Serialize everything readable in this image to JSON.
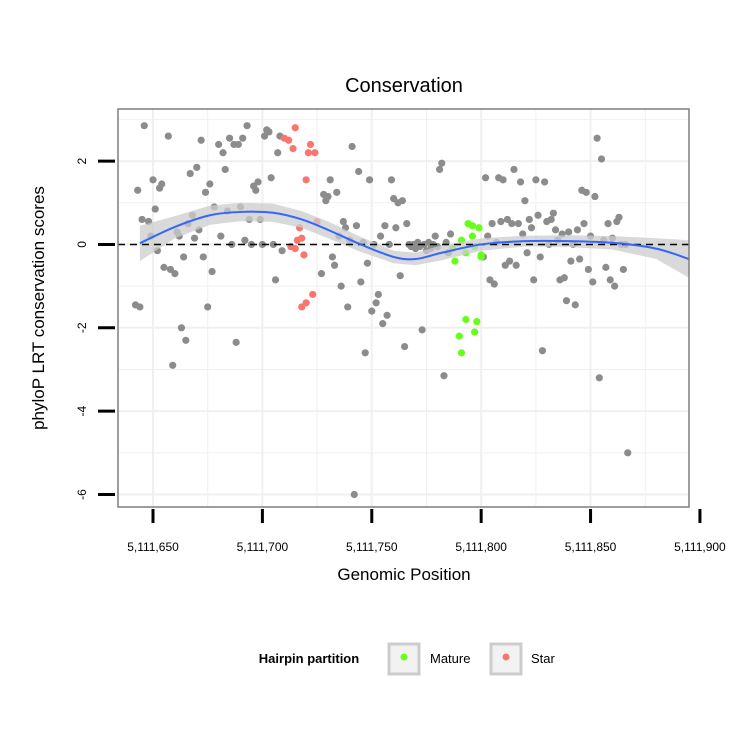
{
  "chart_data": {
    "type": "scatter",
    "title": "Conservation",
    "xlabel": "Genomic Position",
    "ylabel": "phyloP LRT conservation scores",
    "xlim": [
      5111634,
      5111895
    ],
    "ylim": [
      -6.3,
      3.25
    ],
    "x_ticks": [
      5111650,
      5111700,
      5111750,
      5111800,
      5111850,
      5111900
    ],
    "x_tick_labels": [
      "5,111,650",
      "5,111,700",
      "5,111,750",
      "5,111,800",
      "5,111,850",
      "5,111,900"
    ],
    "y_ticks": [
      -6,
      -4,
      -2,
      0,
      2
    ],
    "y_tick_labels": [
      "-6",
      "-4",
      "-2",
      "0",
      "2"
    ],
    "grid": true,
    "reference_line": {
      "y": 0,
      "style": "dashed"
    },
    "legend": {
      "title": "Hairpin partition",
      "placement": "bottom",
      "entries": [
        {
          "name": "Mature",
          "color": "#66ff1a"
        },
        {
          "name": "Star",
          "color": "#f8766d"
        }
      ]
    },
    "colors": {
      "other": "#8c8c8c",
      "Mature": "#66ff1a",
      "Star": "#f8766d",
      "smooth": "#3366ff",
      "ribbon": "#cccccc",
      "panel_border": "#7f7f7f",
      "grid": "#f0f0f0"
    },
    "smooth": {
      "x": [
        5111644,
        5111660,
        5111676,
        5111690,
        5111705,
        5111718,
        5111730,
        5111745,
        5111760,
        5111770,
        5111782,
        5111800,
        5111820,
        5111840,
        5111860,
        5111880,
        5111895
      ],
      "y": [
        0.03,
        0.42,
        0.7,
        0.78,
        0.76,
        0.6,
        0.35,
        0.0,
        -0.3,
        -0.35,
        -0.2,
        0.0,
        0.08,
        0.08,
        0.04,
        -0.1,
        -0.35
      ],
      "lower": [
        -0.4,
        0.15,
        0.47,
        0.56,
        0.54,
        0.4,
        0.15,
        -0.18,
        -0.45,
        -0.5,
        -0.38,
        -0.15,
        -0.05,
        -0.06,
        -0.12,
        -0.35,
        -0.8
      ],
      "upper": [
        0.45,
        0.68,
        0.93,
        1.0,
        0.98,
        0.8,
        0.55,
        0.18,
        -0.15,
        -0.2,
        -0.02,
        0.15,
        0.21,
        0.22,
        0.2,
        0.15,
        0.1
      ]
    },
    "series": [
      {
        "name": "Mature",
        "points": [
          [
            5111788,
            -0.4
          ],
          [
            5111787,
            -0.1
          ],
          [
            5111790,
            -2.2
          ],
          [
            5111791,
            -2.6
          ],
          [
            5111791,
            0.1
          ],
          [
            5111793,
            -0.2
          ],
          [
            5111793,
            -1.8
          ],
          [
            5111794,
            0.5
          ],
          [
            5111796,
            0.45
          ],
          [
            5111796,
            0.2
          ],
          [
            5111797,
            -2.1
          ],
          [
            5111797,
            -0.05
          ],
          [
            5111798,
            -1.85
          ],
          [
            5111799,
            0.4
          ],
          [
            5111800,
            -0.3
          ],
          [
            5111800,
            -0.25
          ]
        ]
      },
      {
        "name": "Star",
        "points": [
          [
            5111710,
            2.55
          ],
          [
            5111712,
            2.5
          ],
          [
            5111713,
            -0.05
          ],
          [
            5111714,
            2.3
          ],
          [
            5111715,
            -0.1
          ],
          [
            5111715,
            2.8
          ],
          [
            5111716,
            0.1
          ],
          [
            5111717,
            0.4
          ],
          [
            5111718,
            0.15
          ],
          [
            5111718,
            -1.5
          ],
          [
            5111719,
            -0.25
          ],
          [
            5111720,
            1.55
          ],
          [
            5111720,
            -1.4
          ],
          [
            5111721,
            2.2
          ],
          [
            5111722,
            2.4
          ],
          [
            5111723,
            -1.2
          ],
          [
            5111724,
            2.2
          ],
          [
            5111725,
            0.55
          ]
        ]
      }
    ],
    "other_points": [
      [
        5111642,
        -1.45
      ],
      [
        5111643,
        1.3
      ],
      [
        5111644,
        -1.5
      ],
      [
        5111645,
        0.6
      ],
      [
        5111646,
        2.85
      ],
      [
        5111648,
        0.55
      ],
      [
        5111649,
        0.2
      ],
      [
        5111650,
        1.55
      ],
      [
        5111651,
        0.85
      ],
      [
        5111652,
        -0.15
      ],
      [
        5111653,
        1.35
      ],
      [
        5111654,
        1.45
      ],
      [
        5111655,
        -0.55
      ],
      [
        5111657,
        2.6
      ],
      [
        5111658,
        -0.6
      ],
      [
        5111659,
        -2.9
      ],
      [
        5111660,
        -0.7
      ],
      [
        5111661,
        0.3
      ],
      [
        5111662,
        0.2
      ],
      [
        5111663,
        -2.0
      ],
      [
        5111664,
        -0.3
      ],
      [
        5111665,
        -2.3
      ],
      [
        5111666,
        0.5
      ],
      [
        5111667,
        1.7
      ],
      [
        5111668,
        0.7
      ],
      [
        5111669,
        0.15
      ],
      [
        5111670,
        1.85
      ],
      [
        5111671,
        0.35
      ],
      [
        5111672,
        2.5
      ],
      [
        5111673,
        -0.3
      ],
      [
        5111674,
        1.25
      ],
      [
        5111675,
        -1.5
      ],
      [
        5111676,
        1.45
      ],
      [
        5111677,
        -0.65
      ],
      [
        5111678,
        0.9
      ],
      [
        5111680,
        2.4
      ],
      [
        5111681,
        0.2
      ],
      [
        5111682,
        2.2
      ],
      [
        5111683,
        1.8
      ],
      [
        5111684,
        0.8
      ],
      [
        5111685,
        2.55
      ],
      [
        5111686,
        0.0
      ],
      [
        5111687,
        2.4
      ],
      [
        5111688,
        -2.35
      ],
      [
        5111689,
        2.4
      ],
      [
        5111690,
        0.9
      ],
      [
        5111691,
        2.55
      ],
      [
        5111692,
        0.1
      ],
      [
        5111693,
        2.85
      ],
      [
        5111694,
        0.6
      ],
      [
        5111695,
        0.0
      ],
      [
        5111696,
        1.4
      ],
      [
        5111697,
        1.3
      ],
      [
        5111698,
        1.5
      ],
      [
        5111699,
        0.6
      ],
      [
        5111700,
        0.0
      ],
      [
        5111701,
        2.6
      ],
      [
        5111702,
        2.75
      ],
      [
        5111703,
        2.7
      ],
      [
        5111704,
        1.6
      ],
      [
        5111705,
        0.0
      ],
      [
        5111706,
        -0.85
      ],
      [
        5111707,
        2.2
      ],
      [
        5111708,
        2.6
      ],
      [
        5111709,
        -0.15
      ],
      [
        5111727,
        -0.7
      ],
      [
        5111728,
        1.2
      ],
      [
        5111729,
        1.05
      ],
      [
        5111730,
        1.15
      ],
      [
        5111731,
        1.55
      ],
      [
        5111732,
        -0.3
      ],
      [
        5111733,
        -0.5
      ],
      [
        5111734,
        1.25
      ],
      [
        5111735,
        0.2
      ],
      [
        5111736,
        -1.0
      ],
      [
        5111737,
        0.55
      ],
      [
        5111738,
        0.4
      ],
      [
        5111739,
        -1.5
      ],
      [
        5111740,
        0.1
      ],
      [
        5111741,
        2.35
      ],
      [
        5111742,
        -6.0
      ],
      [
        5111743,
        0.45
      ],
      [
        5111744,
        1.75
      ],
      [
        5111745,
        -0.9
      ],
      [
        5111746,
        0.05
      ],
      [
        5111747,
        -2.6
      ],
      [
        5111748,
        -0.45
      ],
      [
        5111749,
        1.55
      ],
      [
        5111750,
        -1.6
      ],
      [
        5111751,
        0.0
      ],
      [
        5111752,
        -1.4
      ],
      [
        5111753,
        -1.2
      ],
      [
        5111754,
        0.2
      ],
      [
        5111755,
        -1.9
      ],
      [
        5111756,
        0.45
      ],
      [
        5111757,
        -1.7
      ],
      [
        5111758,
        0.0
      ],
      [
        5111759,
        1.55
      ],
      [
        5111760,
        1.1
      ],
      [
        5111761,
        0.4
      ],
      [
        5111762,
        1.0
      ],
      [
        5111763,
        -0.75
      ],
      [
        5111764,
        1.05
      ],
      [
        5111765,
        -2.45
      ],
      [
        5111766,
        0.5
      ],
      [
        5111767,
        0.0
      ],
      [
        5111768,
        -0.05
      ],
      [
        5111769,
        0.0
      ],
      [
        5111770,
        -0.1
      ],
      [
        5111771,
        0.05
      ],
      [
        5111772,
        -0.05
      ],
      [
        5111773,
        -2.05
      ],
      [
        5111774,
        0.0
      ],
      [
        5111775,
        -0.15
      ],
      [
        5111776,
        0.05
      ],
      [
        5111777,
        -0.1
      ],
      [
        5111778,
        0.0
      ],
      [
        5111779,
        0.2
      ],
      [
        5111780,
        -0.05
      ],
      [
        5111781,
        1.8
      ],
      [
        5111782,
        1.95
      ],
      [
        5111783,
        -3.15
      ],
      [
        5111784,
        0.05
      ],
      [
        5111785,
        -0.2
      ],
      [
        5111786,
        0.25
      ],
      [
        5111801,
        -0.3
      ],
      [
        5111802,
        1.6
      ],
      [
        5111803,
        0.2
      ],
      [
        5111804,
        -0.85
      ],
      [
        5111805,
        0.5
      ],
      [
        5111806,
        -0.95
      ],
      [
        5111807,
        0.05
      ],
      [
        5111808,
        1.6
      ],
      [
        5111809,
        0.55
      ],
      [
        5111810,
        1.55
      ],
      [
        5111811,
        -0.5
      ],
      [
        5111812,
        0.6
      ],
      [
        5111813,
        -0.4
      ],
      [
        5111814,
        0.5
      ],
      [
        5111815,
        1.8
      ],
      [
        5111816,
        -0.5
      ],
      [
        5111817,
        0.5
      ],
      [
        5111818,
        1.5
      ],
      [
        5111819,
        0.25
      ],
      [
        5111820,
        1.05
      ],
      [
        5111821,
        -0.2
      ],
      [
        5111822,
        0.6
      ],
      [
        5111823,
        0.4
      ],
      [
        5111824,
        -0.85
      ],
      [
        5111825,
        1.55
      ],
      [
        5111826,
        0.7
      ],
      [
        5111827,
        -0.3
      ],
      [
        5111828,
        -2.55
      ],
      [
        5111829,
        1.5
      ],
      [
        5111830,
        0.55
      ],
      [
        5111831,
        0.0
      ],
      [
        5111832,
        0.6
      ],
      [
        5111833,
        0.75
      ],
      [
        5111834,
        0.35
      ],
      [
        5111835,
        0.1
      ],
      [
        5111836,
        -0.85
      ],
      [
        5111837,
        0.25
      ],
      [
        5111838,
        -0.8
      ],
      [
        5111839,
        -1.35
      ],
      [
        5111840,
        0.3
      ],
      [
        5111841,
        -0.4
      ],
      [
        5111842,
        0.0
      ],
      [
        5111843,
        -1.45
      ],
      [
        5111844,
        0.35
      ],
      [
        5111845,
        -0.35
      ],
      [
        5111846,
        1.3
      ],
      [
        5111847,
        0.5
      ],
      [
        5111848,
        1.25
      ],
      [
        5111849,
        -0.6
      ],
      [
        5111850,
        0.2
      ],
      [
        5111851,
        -0.9
      ],
      [
        5111852,
        1.15
      ],
      [
        5111853,
        2.55
      ],
      [
        5111854,
        -3.2
      ],
      [
        5111855,
        2.05
      ],
      [
        5111856,
        0.1
      ],
      [
        5111857,
        -0.55
      ],
      [
        5111858,
        0.5
      ],
      [
        5111859,
        -0.85
      ],
      [
        5111860,
        0.15
      ],
      [
        5111861,
        -1.0
      ],
      [
        5111862,
        0.55
      ],
      [
        5111863,
        0.65
      ],
      [
        5111864,
        0.0
      ],
      [
        5111865,
        -0.6
      ],
      [
        5111866,
        0.0
      ],
      [
        5111867,
        -5.0
      ]
    ]
  }
}
